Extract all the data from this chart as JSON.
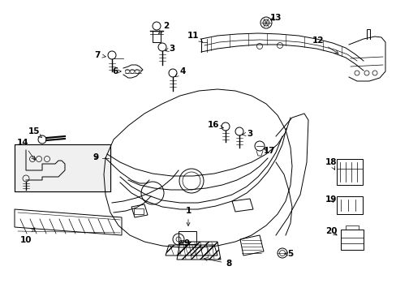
{
  "bg_color": "#ffffff",
  "figsize": [
    4.89,
    3.6
  ],
  "dpi": 100,
  "lw": 0.7,
  "parts": {
    "bumper_outline": {
      "x": [
        0.265,
        0.262,
        0.268,
        0.28,
        0.3,
        0.33,
        0.365,
        0.405,
        0.45,
        0.5,
        0.555,
        0.61,
        0.66,
        0.7,
        0.73,
        0.755,
        0.77,
        0.775,
        0.775,
        0.768,
        0.755,
        0.738,
        0.72,
        0.698,
        0.67,
        0.64,
        0.605,
        0.565,
        0.525,
        0.48,
        0.435,
        0.39,
        0.348,
        0.31,
        0.282,
        0.265
      ],
      "y": [
        0.72,
        0.67,
        0.62,
        0.58,
        0.548,
        0.522,
        0.505,
        0.495,
        0.49,
        0.488,
        0.49,
        0.496,
        0.505,
        0.516,
        0.528,
        0.542,
        0.558,
        0.58,
        0.61,
        0.638,
        0.66,
        0.678,
        0.692,
        0.7,
        0.705,
        0.706,
        0.705,
        0.7,
        0.692,
        0.682,
        0.67,
        0.658,
        0.648,
        0.64,
        0.633,
        0.72
      ]
    }
  }
}
